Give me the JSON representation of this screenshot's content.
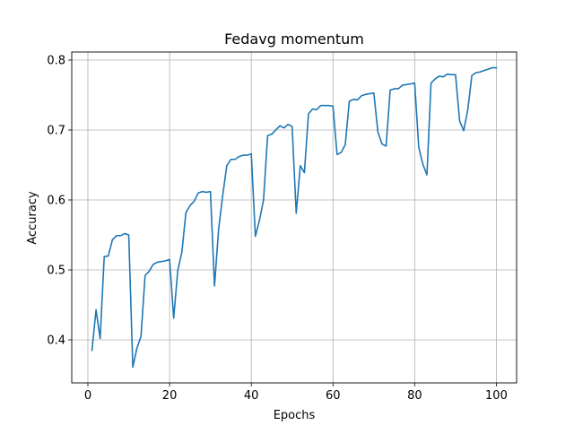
{
  "chart_data": {
    "type": "line",
    "title": "Fedavg momentum",
    "xlabel": "Epochs",
    "ylabel": "Accuracy",
    "xlim": [
      -3.95,
      104.95
    ],
    "ylim": [
      0.3385,
      0.8115
    ],
    "xticks": [
      0,
      20,
      40,
      60,
      80,
      100
    ],
    "xtick_labels": [
      "0",
      "20",
      "40",
      "60",
      "80",
      "100"
    ],
    "yticks": [
      0.4,
      0.5,
      0.6,
      0.7,
      0.8
    ],
    "ytick_labels": [
      "0.4",
      "0.5",
      "0.6",
      "0.7",
      "0.8"
    ],
    "grid": true,
    "colors": {
      "line": "#1f77b4",
      "grid": "#b0b0b0",
      "axes": "#000000"
    },
    "series": [
      {
        "x": [
          1,
          2,
          3,
          4,
          5,
          6,
          7,
          8,
          9,
          10,
          11,
          12,
          13,
          14,
          15,
          16,
          17,
          18,
          19,
          20,
          21,
          22,
          23,
          24,
          25,
          26,
          27,
          28,
          29,
          30,
          31,
          32,
          33,
          34,
          35,
          36,
          37,
          38,
          39,
          40,
          41,
          42,
          43,
          44,
          45,
          46,
          47,
          48,
          49,
          50,
          51,
          52,
          53,
          54,
          55,
          56,
          57,
          58,
          59,
          60,
          61,
          62,
          63,
          64,
          65,
          66,
          67,
          68,
          69,
          70,
          71,
          72,
          73,
          74,
          75,
          76,
          77,
          78,
          79,
          80,
          81,
          82,
          83,
          84,
          85,
          86,
          87,
          88,
          89,
          90,
          91,
          92,
          93,
          94,
          95,
          96,
          97,
          98,
          99,
          100
        ],
        "y": [
          0.385,
          0.443,
          0.402,
          0.519,
          0.52,
          0.543,
          0.549,
          0.549,
          0.552,
          0.55,
          0.361,
          0.388,
          0.405,
          0.492,
          0.498,
          0.508,
          0.511,
          0.512,
          0.513,
          0.515,
          0.431,
          0.499,
          0.525,
          0.582,
          0.592,
          0.598,
          0.61,
          0.612,
          0.611,
          0.612,
          0.477,
          0.558,
          0.606,
          0.649,
          0.658,
          0.658,
          0.662,
          0.664,
          0.664,
          0.666,
          0.548,
          0.571,
          0.6,
          0.692,
          0.694,
          0.7,
          0.706,
          0.703,
          0.708,
          0.705,
          0.581,
          0.649,
          0.639,
          0.723,
          0.73,
          0.729,
          0.735,
          0.735,
          0.735,
          0.734,
          0.665,
          0.668,
          0.679,
          0.741,
          0.744,
          0.743,
          0.749,
          0.751,
          0.752,
          0.753,
          0.697,
          0.68,
          0.677,
          0.757,
          0.759,
          0.759,
          0.764,
          0.765,
          0.766,
          0.767,
          0.675,
          0.651,
          0.636,
          0.767,
          0.773,
          0.777,
          0.776,
          0.78,
          0.779,
          0.779,
          0.713,
          0.699,
          0.729,
          0.778,
          0.782,
          0.783,
          0.785,
          0.787,
          0.789,
          0.789
        ]
      }
    ]
  }
}
